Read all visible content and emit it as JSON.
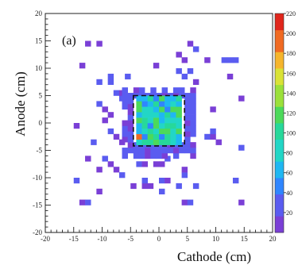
{
  "panel_label": "(a)",
  "chart_data": {
    "type": "heatmap",
    "title": "",
    "xlabel": "Cathode (cm)",
    "ylabel": "Anode (cm)",
    "xlim": [
      -20,
      20
    ],
    "ylim": [
      -20,
      20
    ],
    "x_ticks": [
      -20,
      -15,
      -10,
      -5,
      0,
      5,
      10,
      15,
      20
    ],
    "y_ticks": [
      -20,
      -15,
      -10,
      -5,
      0,
      5,
      10,
      15,
      20
    ],
    "bin_size_cm": 1,
    "z_range": [
      0,
      220
    ],
    "z_ticks": [
      20,
      40,
      60,
      80,
      100,
      120,
      140,
      160,
      180,
      200,
      220
    ],
    "colormap": [
      "#7a3fd6",
      "#5a5cf0",
      "#2f86ff",
      "#1fb7f2",
      "#22d6c6",
      "#27d89a",
      "#4cd95a",
      "#9be03a",
      "#d9e236",
      "#f5b52c",
      "#f06a22",
      "#e0261c"
    ],
    "source_region": {
      "x": [
        -4.5,
        4.5
      ],
      "y": [
        -4.2,
        5.0
      ],
      "typical_counts": "60-140",
      "peak_counts": 200
    },
    "halo_region": {
      "x": [
        -6.5,
        6.5
      ],
      "y": [
        -6.5,
        6.5
      ],
      "typical_counts": "15-35"
    },
    "outer_scatter": {
      "x": [
        -15,
        15
      ],
      "y": [
        -15,
        15
      ],
      "typical_counts": "10-25"
    },
    "marked_box": {
      "x": [
        -4.5,
        4.5
      ],
      "y": [
        -4.2,
        5.0
      ]
    }
  },
  "colors": {
    "frame": "#222222",
    "marked_box": "#111111",
    "background": "#ffffff"
  }
}
